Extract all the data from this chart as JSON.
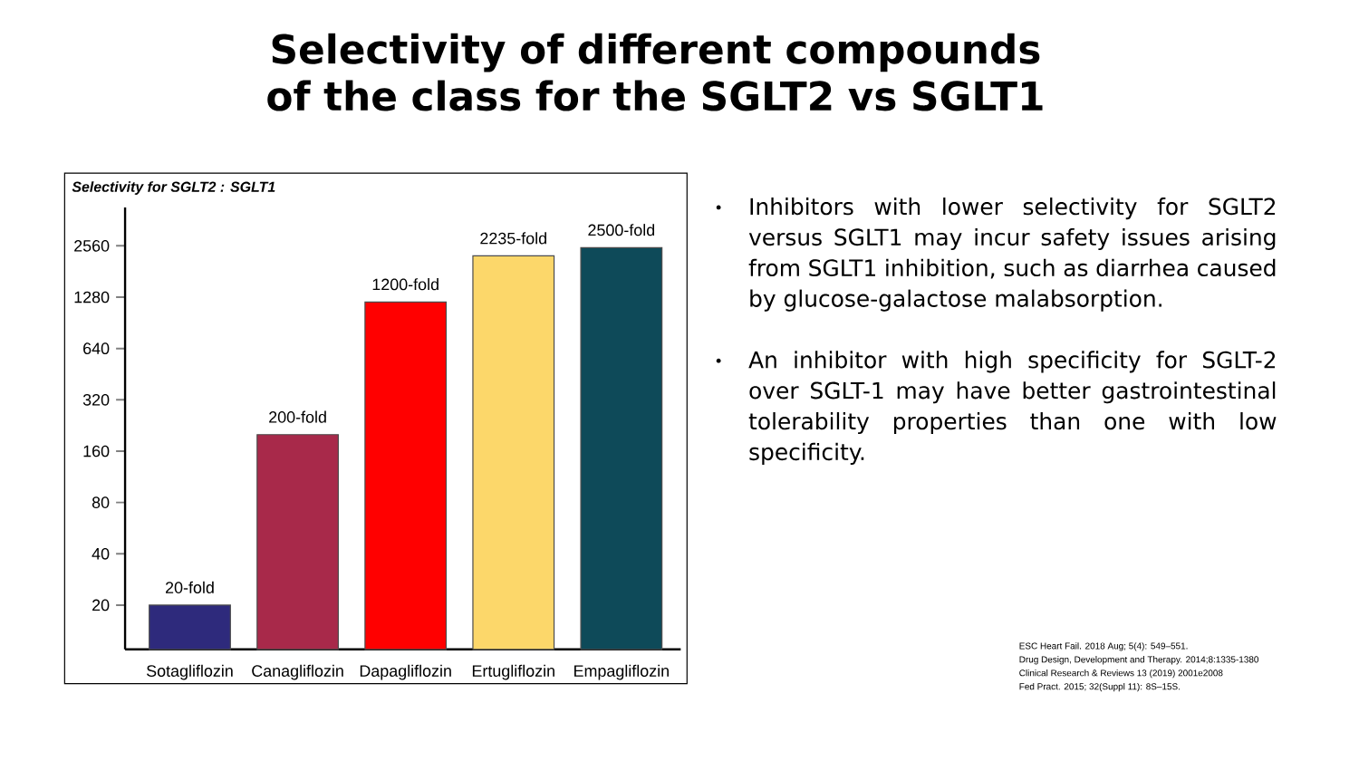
{
  "chart_data": {
    "type": "bar",
    "title": "Selectivity of different compounds of the class for the SGLT2 vs SGLT1",
    "ylabel": "Selectivity for SGLT2 : SGLT1",
    "categories": [
      "Sotagliflozin",
      "Canagliflozin",
      "Dapagliflozin",
      "Ertugliflozin",
      "Empagliflozin"
    ],
    "values": [
      20,
      200,
      1200,
      2235,
      2500
    ],
    "value_labels": [
      "20-fold",
      "200-fold",
      "1200-fold",
      "2235-fold",
      "2500-fold"
    ],
    "colors": [
      "#2e2a7c",
      "#a8294a",
      "#ff0000",
      "#fcd76a",
      "#0e4a59"
    ],
    "log": "y",
    "ylim": [
      11,
      4300
    ],
    "yticks": [
      20,
      40,
      80,
      160,
      320,
      640,
      1280,
      2560
    ],
    "annotations": [
      "Inhibitors with lower selectivity for SGLT2 versus SGLT1 may incur safety issues arising from SGLT1 inhibition, such as diarrhea caused by glucose-galactose malabsorption.",
      "An inhibitor with high specificity for SGLT-2 over SGLT-1 may have better gastrointestinal tolerability properties than one with low specificity.",
      "ESC Heart Fail. 2018 Aug; 5(4): 549–551.",
      "Drug Design, Development and Therapy. 2014;8:1335-1380",
      "Clinical Research & Reviews 13 (2019) 2001e2008",
      "Fed Pract. 2015; 32(Suppl 11): 8S–15S."
    ]
  }
}
